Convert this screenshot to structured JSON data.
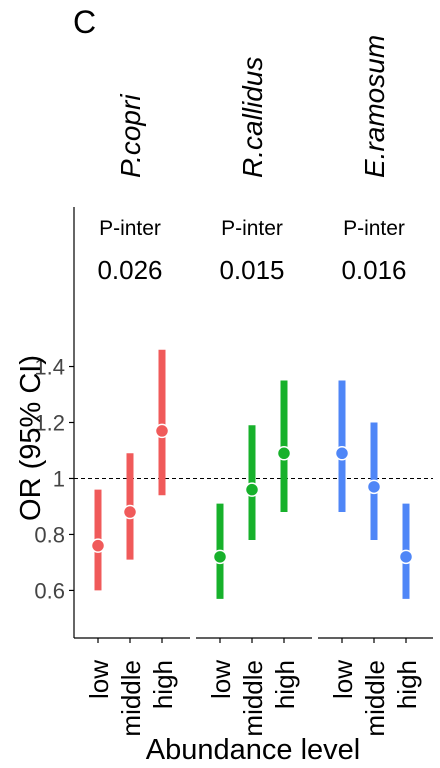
{
  "panel_label": "C",
  "chart_data": {
    "type": "errorbar",
    "ylabel": "OR (95% CI)",
    "xlabel": "Abundance level",
    "ylim": [
      0.43,
      1.97
    ],
    "yticks": [
      0.6,
      0.8,
      1.0,
      1.2,
      1.4
    ],
    "ytick_labels": [
      "0.6",
      "0.8",
      "1",
      "1.2",
      "1.4"
    ],
    "reference_line": 1.0,
    "categories": [
      "low",
      "middle",
      "high"
    ],
    "groups": [
      {
        "name": "P.copri",
        "color": "#F05A5A",
        "p_label": "P-inter",
        "p_value": "0.026",
        "points": [
          {
            "category": "low",
            "or": 0.76,
            "lower": 0.6,
            "upper": 0.96
          },
          {
            "category": "middle",
            "or": 0.88,
            "lower": 0.71,
            "upper": 1.09
          },
          {
            "category": "high",
            "or": 1.17,
            "lower": 0.94,
            "upper": 1.46
          }
        ]
      },
      {
        "name": "R.callidus",
        "color": "#17B12B",
        "p_label": "P-inter",
        "p_value": "0.015",
        "points": [
          {
            "category": "low",
            "or": 0.72,
            "lower": 0.57,
            "upper": 0.91
          },
          {
            "category": "middle",
            "or": 0.96,
            "lower": 0.78,
            "upper": 1.19
          },
          {
            "category": "high",
            "or": 1.09,
            "lower": 0.88,
            "upper": 1.35
          }
        ]
      },
      {
        "name": "E.ramosum",
        "color": "#4F86F7",
        "p_label": "P-inter",
        "p_value": "0.016",
        "points": [
          {
            "category": "low",
            "or": 1.09,
            "lower": 0.88,
            "upper": 1.35
          },
          {
            "category": "middle",
            "or": 0.97,
            "lower": 0.78,
            "upper": 1.2
          },
          {
            "category": "high",
            "or": 0.72,
            "lower": 0.57,
            "upper": 0.91
          }
        ]
      }
    ]
  }
}
